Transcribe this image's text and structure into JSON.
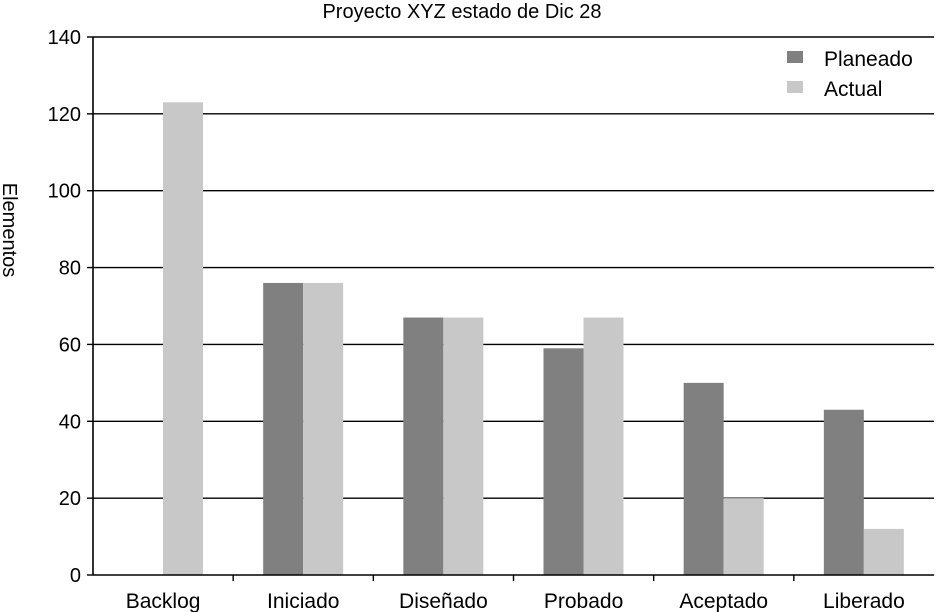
{
  "chart_data": {
    "type": "bar",
    "title": "Proyecto XYZ estado de Dic 28",
    "xlabel": "",
    "ylabel": "Elementos",
    "ylim": [
      0,
      140
    ],
    "yticks": [
      0,
      20,
      40,
      60,
      80,
      100,
      120,
      140
    ],
    "grid": true,
    "legend_position": "top-right",
    "categories": [
      "Backlog",
      "Iniciado",
      "Diseñado",
      "Probado",
      "Aceptado",
      "Liberado"
    ],
    "series": [
      {
        "name": "Planeado",
        "color": "#808080",
        "values": [
          0,
          76,
          67,
          59,
          50,
          43
        ]
      },
      {
        "name": "Actual",
        "color": "#c8c8c8",
        "values": [
          123,
          76,
          67,
          67,
          20,
          12
        ]
      }
    ]
  }
}
